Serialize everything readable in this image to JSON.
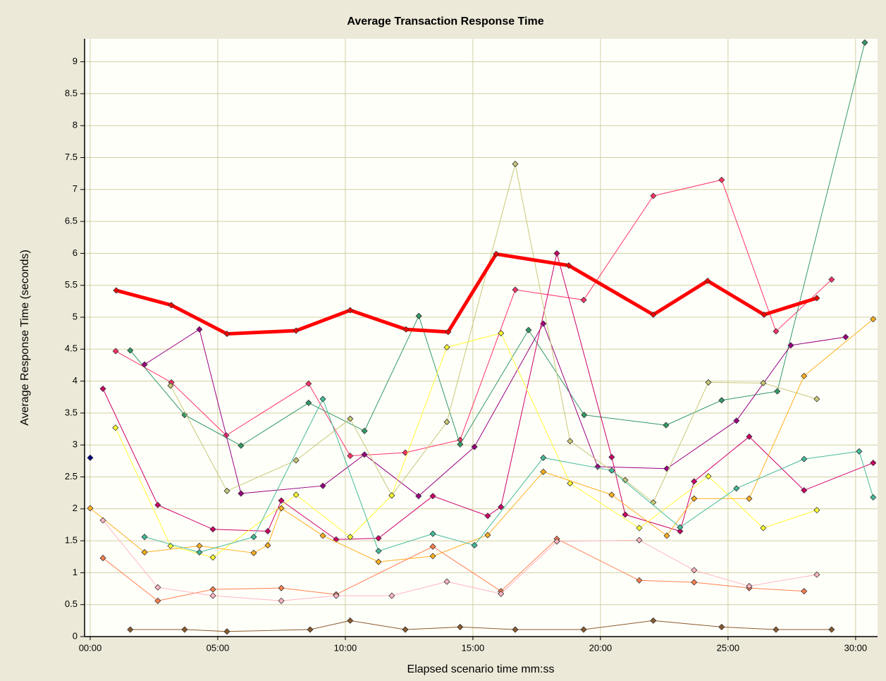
{
  "chart_data": {
    "type": "line",
    "title": "Average Transaction Response Time",
    "x_label": "Elapsed scenario time mm:ss",
    "y_label": "Average Response Time (seconds)",
    "xlim": [
      -0.22,
      30.86
    ],
    "ylim": [
      0,
      9.36
    ],
    "xticks": [
      {
        "value": 0,
        "label": "00:00"
      },
      {
        "value": 5,
        "label": "05:00"
      },
      {
        "value": 10,
        "label": "10:00"
      },
      {
        "value": 15,
        "label": "15:00"
      },
      {
        "value": 20,
        "label": "20:00"
      },
      {
        "value": 25,
        "label": "25:00"
      },
      {
        "value": 30,
        "label": "30:00"
      }
    ],
    "yticks": [
      0,
      0.5,
      1,
      1.5,
      2,
      2.5,
      3,
      3.5,
      4,
      4.5,
      5,
      5.5,
      6,
      6.5,
      7,
      7.5,
      8,
      8.5,
      9
    ],
    "grid": true,
    "series": [
      {
        "color": "#ff3366",
        "width": 1,
        "x": [
          1.0,
          3.18,
          5.33,
          8.56,
          10.19,
          12.35,
          14.5,
          16.66,
          19.34,
          22.07,
          24.75,
          26.88,
          29.06
        ],
        "values": [
          4.47,
          3.98,
          3.15,
          3.96,
          2.83,
          2.88,
          3.08,
          5.43,
          5.27,
          6.9,
          7.15,
          4.78,
          5.59
        ]
      },
      {
        "color": "#339966",
        "width": 1,
        "x": [
          1.57,
          3.7,
          5.91,
          8.56,
          10.75,
          12.88,
          14.5,
          17.18,
          19.36,
          22.57,
          24.75,
          26.93,
          30.36
        ],
        "values": [
          4.48,
          3.47,
          2.99,
          3.66,
          3.22,
          5.02,
          3.01,
          4.8,
          3.47,
          3.31,
          3.7,
          3.84,
          9.3
        ]
      },
      {
        "color": "#990080",
        "width": 1,
        "x": [
          2.13,
          4.28,
          5.91,
          9.12,
          10.75,
          12.87,
          15.06,
          17.76,
          19.89,
          22.6,
          25.33,
          27.46,
          29.61
        ],
        "values": [
          4.26,
          4.81,
          2.24,
          2.36,
          2.85,
          2.2,
          2.97,
          4.9,
          2.66,
          2.63,
          3.38,
          4.56,
          4.69
        ]
      },
      {
        "color": "#cc0066",
        "width": 1,
        "x": [
          0.5,
          2.65,
          4.81,
          6.96,
          7.49,
          9.64,
          11.3,
          13.43,
          15.58,
          16.1,
          18.29,
          20.44,
          20.97,
          23.12,
          23.67,
          25.83,
          27.98,
          30.69
        ],
        "values": [
          3.88,
          2.06,
          1.68,
          1.65,
          2.13,
          1.52,
          1.54,
          2.2,
          1.89,
          2.03,
          6.0,
          2.81,
          1.91,
          1.65,
          2.43,
          3.13,
          2.29,
          2.72
        ]
      },
      {
        "color": "#c8c878",
        "width": 1,
        "x": [
          3.15,
          5.36,
          8.07,
          10.19,
          11.82,
          13.98,
          16.66,
          18.81,
          20.97,
          22.07,
          24.23,
          26.38,
          28.48
        ],
        "values": [
          3.93,
          2.28,
          2.76,
          3.41,
          2.21,
          3.36,
          7.4,
          3.06,
          2.45,
          2.1,
          3.98,
          3.97,
          3.72
        ]
      },
      {
        "color": "#ffff33",
        "width": 1,
        "x": [
          0.99,
          3.15,
          4.81,
          8.07,
          10.19,
          11.82,
          13.98,
          16.1,
          18.81,
          21.52,
          24.23,
          26.38,
          28.48
        ],
        "values": [
          3.27,
          1.42,
          1.24,
          2.22,
          1.56,
          2.21,
          4.53,
          4.75,
          2.4,
          1.7,
          2.51,
          1.7,
          1.98
        ]
      },
      {
        "color": "#ffb020",
        "width": 1,
        "x": [
          0,
          2.13,
          4.28,
          6.41,
          6.96,
          7.49,
          9.12,
          11.3,
          13.43,
          15.58,
          17.76,
          20.44,
          22.6,
          23.67,
          25.83,
          27.98,
          30.69
        ],
        "values": [
          2.01,
          1.32,
          1.42,
          1.31,
          1.43,
          2.01,
          1.58,
          1.17,
          1.26,
          1.59,
          2.58,
          2.22,
          1.58,
          2.16,
          2.16,
          4.08,
          4.97
        ]
      },
      {
        "color": "#44bb99",
        "width": 1,
        "x": [
          2.13,
          4.28,
          6.41,
          9.12,
          11.3,
          13.43,
          15.06,
          17.76,
          20.44,
          23.12,
          25.33,
          27.98,
          30.14,
          30.69
        ],
        "values": [
          1.56,
          1.32,
          1.56,
          3.72,
          1.34,
          1.61,
          1.43,
          2.8,
          2.6,
          1.71,
          2.32,
          2.78,
          2.9,
          2.18
        ]
      },
      {
        "color": "#ff8050",
        "width": 1,
        "x": [
          0.5,
          2.65,
          4.81,
          7.49,
          9.64,
          13.43,
          16.1,
          18.29,
          21.52,
          23.67,
          25.83,
          27.98
        ],
        "values": [
          1.23,
          0.56,
          0.74,
          0.76,
          0.66,
          1.41,
          0.71,
          1.53,
          0.88,
          0.85,
          0.76,
          0.71
        ]
      },
      {
        "color": "#ffb6c1",
        "width": 1,
        "x": [
          0.5,
          2.65,
          4.81,
          7.49,
          9.64,
          11.82,
          13.98,
          16.1,
          18.29,
          21.52,
          23.67,
          25.83,
          28.48
        ],
        "values": [
          1.82,
          0.77,
          0.64,
          0.56,
          0.64,
          0.64,
          0.86,
          0.67,
          1.49,
          1.51,
          1.04,
          0.79,
          0.97
        ]
      },
      {
        "color": "#8b5a2b",
        "width": 1,
        "x": [
          1.57,
          3.7,
          5.36,
          8.62,
          10.19,
          12.35,
          14.5,
          16.66,
          19.34,
          22.07,
          24.75,
          26.88,
          29.06
        ],
        "values": [
          0.11,
          0.11,
          0.08,
          0.11,
          0.25,
          0.11,
          0.15,
          0.11,
          0.11,
          0.25,
          0.15,
          0.11,
          0.11
        ]
      },
      {
        "color": "#000080",
        "width": 1,
        "x": [
          0
        ],
        "values": [
          2.8
        ]
      },
      {
        "color": "#ff0000",
        "width": 5,
        "x": [
          1.02,
          3.18,
          5.36,
          8.07,
          10.19,
          12.38,
          14.03,
          15.91,
          18.76,
          22.07,
          24.2,
          26.41,
          28.48
        ],
        "values": [
          5.42,
          5.19,
          4.74,
          4.79,
          5.11,
          4.81,
          4.77,
          5.99,
          5.81,
          5.04,
          5.57,
          5.04,
          5.3
        ]
      }
    ]
  }
}
